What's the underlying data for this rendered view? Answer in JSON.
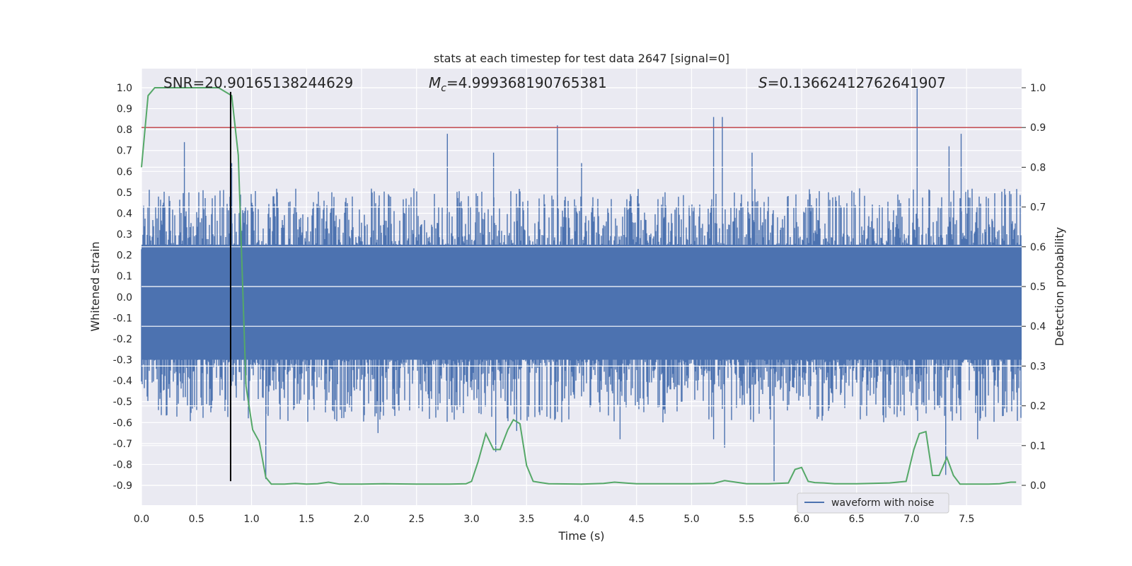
{
  "chart_data": {
    "type": "line",
    "title": "stats at each timestep for test data 2647 [signal=0]",
    "xlabel": "Time (s)",
    "ylabel": "Whitened strain",
    "y2label": "Detection probability",
    "xlim": [
      0.0,
      8.0
    ],
    "ylim": [
      -0.95,
      1.08
    ],
    "y2lim": [
      -0.05,
      1.05
    ],
    "xticks": [
      0.0,
      0.5,
      1.0,
      1.5,
      2.0,
      2.5,
      3.0,
      3.5,
      4.0,
      4.5,
      5.0,
      5.5,
      6.0,
      6.5,
      7.0,
      7.5
    ],
    "xtick_labels": [
      "0.0",
      "0.5",
      "1.0",
      "1.5",
      "2.0",
      "2.5",
      "3.0",
      "3.5",
      "4.0",
      "4.5",
      "5.0",
      "5.5",
      "6.0",
      "6.5",
      "7.0",
      "7.5"
    ],
    "yticks": [
      1.0,
      0.9,
      0.8,
      0.7,
      0.6,
      0.5,
      0.4,
      0.3,
      0.2,
      0.1,
      0.0,
      -0.1,
      -0.2,
      -0.3,
      -0.4,
      -0.5,
      -0.6,
      -0.7,
      -0.8,
      -0.9
    ],
    "ytick_labels": [
      "1.0",
      "0.9",
      "0.8",
      "0.7",
      "0.6",
      "0.5",
      "0.4",
      "0.3",
      "0.2",
      "0.1",
      "0.0",
      "-0.1",
      "-0.2",
      "-0.3",
      "-0.4",
      "-0.5",
      "-0.6",
      "-0.7",
      "-0.8",
      "-0.9"
    ],
    "y2ticks": [
      1.0,
      0.9,
      0.8,
      0.7,
      0.6,
      0.5,
      0.4,
      0.3,
      0.2,
      0.1,
      0.0
    ],
    "y2tick_labels": [
      "1.0",
      "0.9",
      "0.8",
      "0.7",
      "0.6",
      "0.5",
      "0.4",
      "0.3",
      "0.2",
      "0.1",
      "0.0"
    ],
    "grid": true,
    "legend": {
      "location": "lower right",
      "entries": [
        "waveform with noise"
      ]
    },
    "annotations": {
      "snr": "SNR=20.90165138244629",
      "mc_symbol": "M",
      "mc_sub": "c",
      "mc_value": "=4.999368190765381",
      "s_symbol": "S",
      "s_value": "=0.13662412762641907"
    },
    "threshold_line": {
      "y2": 0.9,
      "color": "#c44e52"
    },
    "marker_line": {
      "x": 0.81,
      "y_from": -0.88,
      "y_to": 0.98,
      "color": "#000000"
    },
    "waveform": {
      "name": "waveform with noise",
      "color": "#4c72b0",
      "duration": 8.0,
      "band_upper": 0.25,
      "band_lower": -0.3,
      "peaks": [
        {
          "t": 0.39,
          "v": 0.74
        },
        {
          "t": 0.82,
          "v": 0.64
        },
        {
          "t": 2.78,
          "v": 0.78
        },
        {
          "t": 3.78,
          "v": 0.82
        },
        {
          "t": 5.2,
          "v": 0.86
        },
        {
          "t": 5.28,
          "v": 0.86
        },
        {
          "t": 7.05,
          "v": 1.0
        },
        {
          "t": 7.45,
          "v": 0.78
        },
        {
          "t": 7.34,
          "v": 0.72
        },
        {
          "t": 3.2,
          "v": 0.69
        },
        {
          "t": 4.0,
          "v": 0.64
        },
        {
          "t": 5.55,
          "v": 0.69
        },
        {
          "t": 5.75,
          "v": -0.88
        },
        {
          "t": 1.13,
          "v": -0.87
        },
        {
          "t": 3.22,
          "v": -0.74
        },
        {
          "t": 5.3,
          "v": -0.72
        },
        {
          "t": 0.81,
          "v": -0.64
        },
        {
          "t": 2.15,
          "v": -0.65
        },
        {
          "t": 4.35,
          "v": -0.68
        },
        {
          "t": 7.31,
          "v": -0.85
        },
        {
          "t": 7.6,
          "v": -0.68
        },
        {
          "t": 3.41,
          "v": -0.64
        },
        {
          "t": 5.2,
          "v": -0.68
        }
      ]
    },
    "probability": {
      "name": "Detection probability",
      "color": "#55a868",
      "x": [
        0.0,
        0.06,
        0.12,
        0.2,
        0.3,
        0.45,
        0.6,
        0.7,
        0.76,
        0.82,
        0.88,
        0.95,
        1.01,
        1.07,
        1.13,
        1.18,
        1.3,
        1.4,
        1.5,
        1.6,
        1.7,
        1.8,
        2.0,
        2.2,
        2.5,
        2.8,
        2.95,
        3.0,
        3.06,
        3.13,
        3.2,
        3.26,
        3.33,
        3.38,
        3.44,
        3.5,
        3.56,
        3.7,
        4.0,
        4.2,
        4.3,
        4.5,
        4.8,
        5.0,
        5.2,
        5.3,
        5.5,
        5.7,
        5.88,
        5.94,
        6.0,
        6.06,
        6.12,
        6.2,
        6.3,
        6.5,
        6.8,
        6.95,
        7.02,
        7.07,
        7.13,
        7.19,
        7.25,
        7.32,
        7.38,
        7.44,
        7.55,
        7.7,
        7.8,
        7.9,
        7.95
      ],
      "y": [
        0.8,
        0.98,
        1.0,
        1.0,
        1.0,
        1.0,
        1.0,
        1.0,
        0.99,
        0.98,
        0.83,
        0.25,
        0.14,
        0.11,
        0.02,
        0.003,
        0.003,
        0.005,
        0.003,
        0.004,
        0.008,
        0.003,
        0.003,
        0.004,
        0.003,
        0.003,
        0.004,
        0.01,
        0.06,
        0.13,
        0.09,
        0.09,
        0.14,
        0.165,
        0.155,
        0.05,
        0.01,
        0.004,
        0.003,
        0.005,
        0.008,
        0.004,
        0.004,
        0.004,
        0.005,
        0.012,
        0.004,
        0.004,
        0.006,
        0.04,
        0.045,
        0.01,
        0.007,
        0.006,
        0.004,
        0.004,
        0.006,
        0.01,
        0.09,
        0.13,
        0.135,
        0.025,
        0.025,
        0.07,
        0.025,
        0.003,
        0.003,
        0.003,
        0.004,
        0.008,
        0.008
      ]
    }
  }
}
